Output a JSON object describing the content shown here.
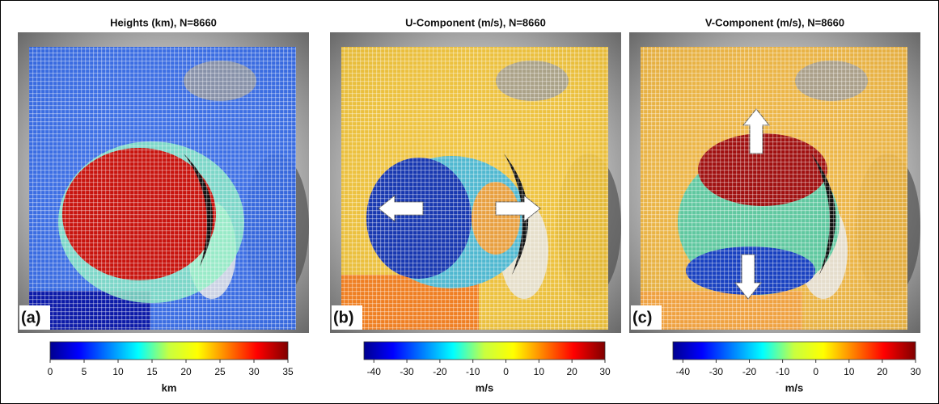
{
  "chart_data": [
    {
      "type": "colormap",
      "title": "Heights (km), N=8660",
      "panel_label": "(a)",
      "colorbar_label": "km",
      "clim": [
        0,
        35
      ],
      "cticks": [
        0,
        5,
        10,
        15,
        20,
        25,
        30,
        35
      ]
    },
    {
      "type": "colormap",
      "title": "U-Component (m/s), N=8660",
      "panel_label": "(b)",
      "colorbar_label": "m/s",
      "clim": [
        -43,
        30
      ],
      "cticks": [
        -40,
        -30,
        -20,
        -10,
        0,
        10,
        20,
        30
      ]
    },
    {
      "type": "colormap",
      "title": "V-Component (m/s), N=8660",
      "panel_label": "(c)",
      "colorbar_label": "m/s",
      "clim": [
        -43,
        30
      ],
      "cticks": [
        -40,
        -30,
        -20,
        -10,
        0,
        10,
        20,
        30
      ]
    }
  ]
}
